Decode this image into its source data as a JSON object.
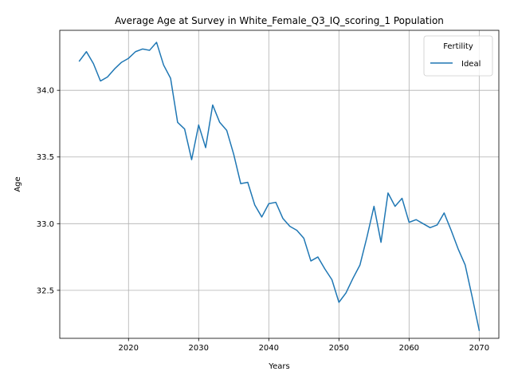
{
  "chart_data": {
    "type": "line",
    "title": "Average Age at Survey in White_Female_Q3_IQ_scoring_1 Population",
    "xlabel": "Years",
    "ylabel": "Age",
    "xlim": [
      2010.2,
      2072.8
    ],
    "ylim": [
      32.14,
      34.45
    ],
    "x_ticks": [
      2020,
      2030,
      2040,
      2050,
      2060,
      2070
    ],
    "y_ticks": [
      32.5,
      33.0,
      33.5,
      34.0
    ],
    "x_tick_labels": [
      "2020",
      "2030",
      "2040",
      "2050",
      "2060",
      "2070"
    ],
    "y_tick_labels": [
      "32.5",
      "33.0",
      "33.5",
      "34.0"
    ],
    "grid": true,
    "legend": {
      "title": "Fertility",
      "placement": "top-right"
    },
    "series": [
      {
        "name": "Ideal",
        "color": "#1f77b4",
        "x": [
          2013,
          2014,
          2015,
          2016,
          2017,
          2018,
          2019,
          2020,
          2021,
          2022,
          2023,
          2024,
          2025,
          2026,
          2027,
          2028,
          2029,
          2030,
          2031,
          2032,
          2033,
          2034,
          2035,
          2036,
          2037,
          2038,
          2039,
          2040,
          2041,
          2042,
          2043,
          2044,
          2045,
          2046,
          2047,
          2048,
          2049,
          2050,
          2051,
          2052,
          2053,
          2054,
          2055,
          2056,
          2057,
          2058,
          2059,
          2060,
          2061,
          2062,
          2063,
          2064,
          2065,
          2066,
          2067,
          2068,
          2069,
          2070
        ],
        "y": [
          34.22,
          34.29,
          34.2,
          34.07,
          34.1,
          34.16,
          34.21,
          34.24,
          34.29,
          34.31,
          34.3,
          34.36,
          34.19,
          34.09,
          33.76,
          33.71,
          33.48,
          33.74,
          33.57,
          33.89,
          33.76,
          33.7,
          33.52,
          33.3,
          33.31,
          33.14,
          33.05,
          33.15,
          33.16,
          33.04,
          32.98,
          32.95,
          32.89,
          32.72,
          32.75,
          32.66,
          32.58,
          32.41,
          32.48,
          32.59,
          32.69,
          32.9,
          33.13,
          32.86,
          33.23,
          33.13,
          33.19,
          33.01,
          33.03,
          33.0,
          32.97,
          32.99,
          33.08,
          32.95,
          32.81,
          32.69,
          32.45,
          32.2
        ]
      }
    ]
  }
}
